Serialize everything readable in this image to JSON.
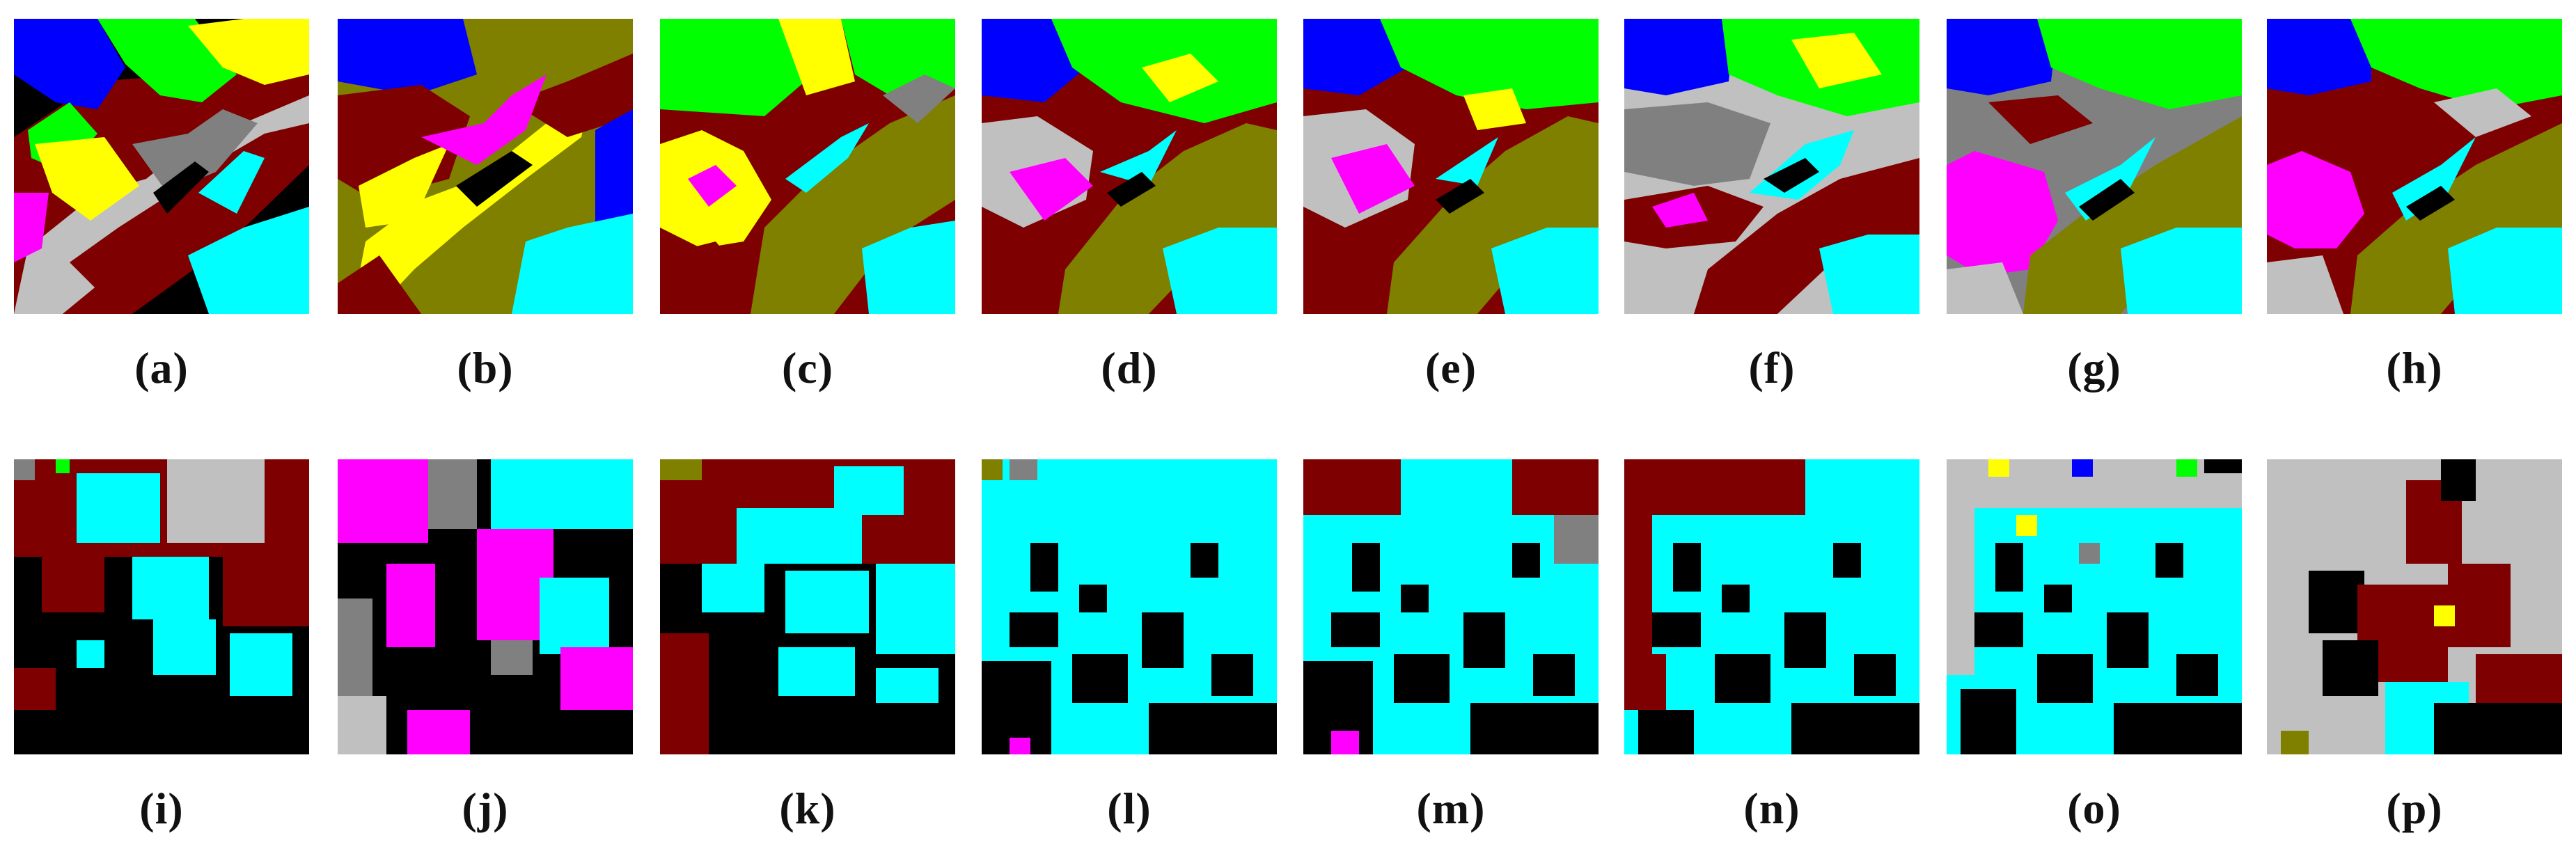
{
  "figure": {
    "top_row": [
      {
        "label": "(a)"
      },
      {
        "label": "(b)"
      },
      {
        "label": "(c)"
      },
      {
        "label": "(d)"
      },
      {
        "label": "(e)"
      },
      {
        "label": "(f)"
      },
      {
        "label": "(g)"
      },
      {
        "label": "(h)"
      }
    ],
    "bottom_row": [
      {
        "label": "(i)"
      },
      {
        "label": "(j)"
      },
      {
        "label": "(k)"
      },
      {
        "label": "(l)"
      },
      {
        "label": "(m)"
      },
      {
        "label": "(n)"
      },
      {
        "label": "(o)"
      },
      {
        "label": "(p)"
      }
    ]
  },
  "palette": {
    "background": "#000000",
    "dark_red": "#7f0000",
    "olive": "#7f7f00",
    "cyan": "#00ffff",
    "green": "#00ff00",
    "blue": "#0000ff",
    "yellow": "#ffff00",
    "magenta": "#ff00ff",
    "gray": "#808080",
    "light_gray": "#c0c0c0"
  }
}
